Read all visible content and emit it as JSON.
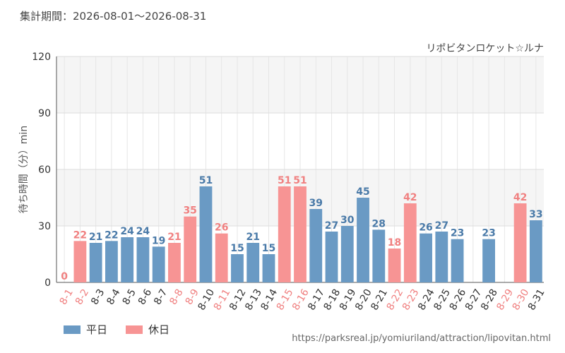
{
  "header": {
    "period_label": "集計期間：2026-08-01～2026-08-31",
    "attraction": "リポビタンロケット☆ルナ"
  },
  "legend": {
    "weekday": "平日",
    "holiday": "休日"
  },
  "source_url": "https://parksreal.jp/yomiuriland/attraction/lipovitan.html",
  "colors": {
    "weekday": "#6a9ac4",
    "holiday": "#f79494",
    "grid": "#dddddd",
    "band": "#f5f5f5"
  },
  "chart_data": {
    "type": "bar",
    "ylabel": "待ち時間（分）min",
    "ylim": [
      0,
      120
    ],
    "yticks": [
      0,
      30,
      60,
      90,
      120
    ],
    "categories": [
      "8-1",
      "8-2",
      "8-3",
      "8-4",
      "8-5",
      "8-6",
      "8-7",
      "8-8",
      "8-9",
      "8-10",
      "8-11",
      "8-12",
      "8-13",
      "8-14",
      "8-15",
      "8-16",
      "8-17",
      "8-18",
      "8-19",
      "8-20",
      "8-21",
      "8-22",
      "8-23",
      "8-24",
      "8-25",
      "8-26",
      "8-27",
      "8-28",
      "8-29",
      "8-30",
      "8-31"
    ],
    "values": [
      0,
      22,
      21,
      22,
      24,
      24,
      19,
      21,
      35,
      51,
      26,
      15,
      21,
      15,
      51,
      51,
      39,
      27,
      30,
      45,
      28,
      18,
      42,
      26,
      27,
      23,
      null,
      23,
      null,
      42,
      33
    ],
    "day_type": [
      "holiday",
      "holiday",
      "weekday",
      "weekday",
      "weekday",
      "weekday",
      "weekday",
      "holiday",
      "holiday",
      "weekday",
      "holiday",
      "weekday",
      "weekday",
      "weekday",
      "holiday",
      "holiday",
      "weekday",
      "weekday",
      "weekday",
      "weekday",
      "weekday",
      "holiday",
      "holiday",
      "weekday",
      "weekday",
      "weekday",
      "weekday",
      "weekday",
      "holiday",
      "holiday",
      "weekday"
    ]
  }
}
